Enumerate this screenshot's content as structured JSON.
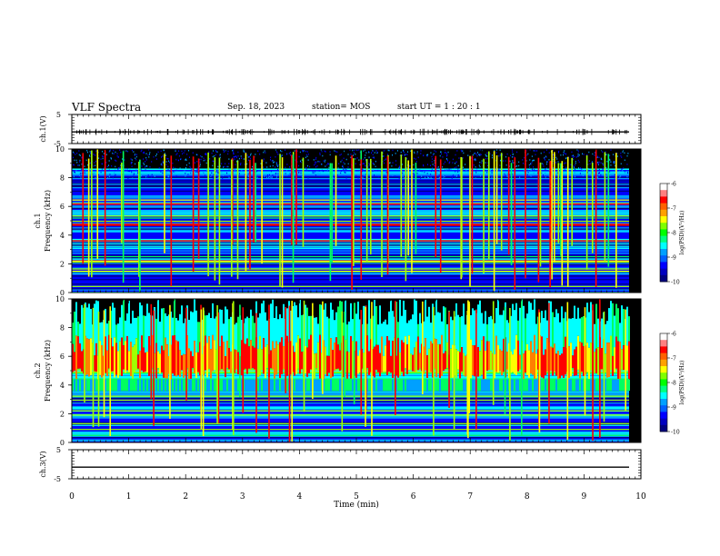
{
  "header": {
    "title": "VLF Spectra",
    "date": "Sep. 18, 2023",
    "station": "station= MOS",
    "start_ut": "start  UT =   1 : 20 : 1"
  },
  "chart_data": [
    {
      "type": "line",
      "ylabel": "ch.1(V)",
      "ylim": [
        -5,
        5
      ],
      "yticks": [
        "5",
        "-5"
      ],
      "series": [
        {
          "name": "",
          "values": []
        }
      ],
      "baseline": -1,
      "xlim": [
        0,
        10
      ]
    },
    {
      "type": "heatmap",
      "ylabel": "ch.1 Frequency (kHz)",
      "ylim": [
        0,
        10
      ],
      "yticks": [
        "0",
        "2",
        "4",
        "6",
        "8",
        "10"
      ],
      "xlim": [
        0,
        10
      ],
      "colorbar": {
        "label": "log(PSD)(V²/Hz)",
        "range": [
          -10,
          -6
        ],
        "ticks": [
          "-6",
          "-7",
          "-8",
          "-9",
          "-10"
        ]
      }
    },
    {
      "type": "heatmap",
      "ylabel": "ch.2 Frequency (kHz)",
      "ylim": [
        0,
        10
      ],
      "yticks": [
        "0",
        "2",
        "4",
        "6",
        "8",
        "10"
      ],
      "xlim": [
        0,
        10
      ],
      "colorbar": {
        "label": "log(PSD)(V²/Hz)",
        "range": [
          -10,
          -6
        ],
        "ticks": [
          "-6",
          "-7",
          "-8",
          "-9",
          "-10"
        ]
      }
    },
    {
      "type": "line",
      "ylabel": "ch.3(V)",
      "ylim": [
        -5,
        5
      ],
      "yticks": [
        "5",
        "-5"
      ],
      "baseline": -1,
      "xlim": [
        0,
        10
      ],
      "xlabel": "Time  (min)",
      "xticks": [
        "0",
        "1",
        "2",
        "3",
        "4",
        "5",
        "6",
        "7",
        "8",
        "9",
        "10"
      ]
    }
  ],
  "colors": {
    "colormap": [
      "#000080",
      "#0000ff",
      "#00a0ff",
      "#00ffff",
      "#00ff60",
      "#a0ff00",
      "#ffff00",
      "#ff8000",
      "#ff0000",
      "#ffffff"
    ]
  }
}
